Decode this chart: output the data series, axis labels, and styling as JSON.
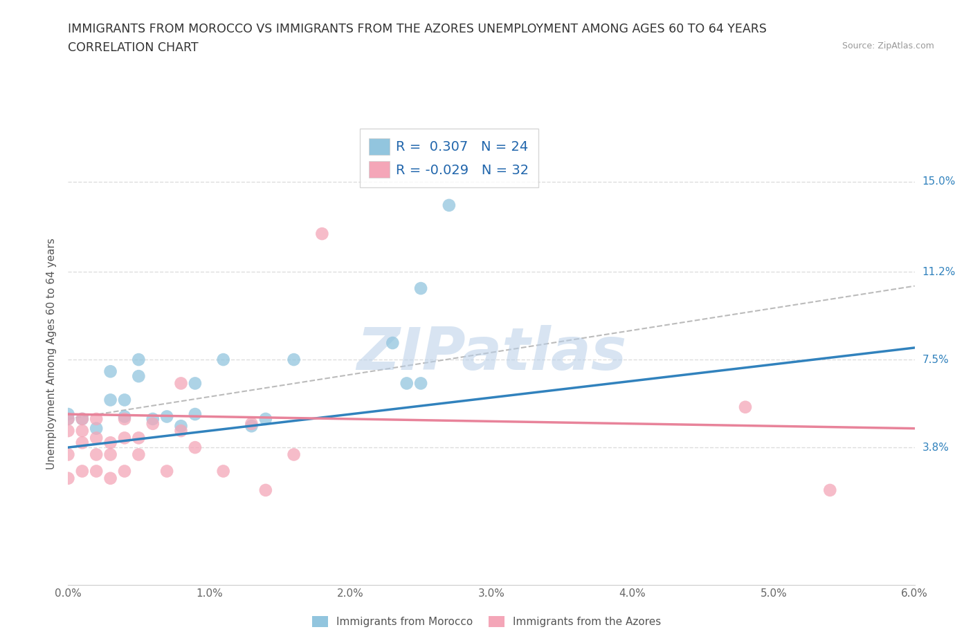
{
  "title_line1": "IMMIGRANTS FROM MOROCCO VS IMMIGRANTS FROM THE AZORES UNEMPLOYMENT AMONG AGES 60 TO 64 YEARS",
  "title_line2": "CORRELATION CHART",
  "source_text": "Source: ZipAtlas.com",
  "ylabel": "Unemployment Among Ages 60 to 64 years",
  "xlim": [
    0.0,
    0.06
  ],
  "ylim": [
    -0.02,
    0.175
  ],
  "xticks": [
    0.0,
    0.01,
    0.02,
    0.03,
    0.04,
    0.05,
    0.06
  ],
  "xticklabels": [
    "0.0%",
    "1.0%",
    "2.0%",
    "3.0%",
    "4.0%",
    "5.0%",
    "6.0%"
  ],
  "ytick_positions": [
    0.038,
    0.075,
    0.112,
    0.15
  ],
  "ytick_labels": [
    "3.8%",
    "7.5%",
    "11.2%",
    "15.0%"
  ],
  "watermark": "ZIPatlas",
  "blue_color": "#92c5de",
  "pink_color": "#f4a6b8",
  "blue_line_color": "#3182bd",
  "pink_line_color": "#e8839a",
  "dashed_line_color": "#bbbbbb",
  "R_blue": 0.307,
  "N_blue": 24,
  "R_pink": -0.029,
  "N_pink": 32,
  "blue_scatter_x": [
    0.0,
    0.0,
    0.001,
    0.002,
    0.003,
    0.003,
    0.004,
    0.004,
    0.005,
    0.005,
    0.006,
    0.007,
    0.008,
    0.009,
    0.009,
    0.011,
    0.013,
    0.014,
    0.016,
    0.023,
    0.024,
    0.025,
    0.025,
    0.027
  ],
  "blue_scatter_y": [
    0.05,
    0.052,
    0.05,
    0.046,
    0.058,
    0.07,
    0.051,
    0.058,
    0.068,
    0.075,
    0.05,
    0.051,
    0.047,
    0.052,
    0.065,
    0.075,
    0.047,
    0.05,
    0.075,
    0.082,
    0.065,
    0.065,
    0.105,
    0.14
  ],
  "pink_scatter_x": [
    0.0,
    0.0,
    0.0,
    0.0,
    0.001,
    0.001,
    0.001,
    0.001,
    0.002,
    0.002,
    0.002,
    0.002,
    0.003,
    0.003,
    0.003,
    0.004,
    0.004,
    0.004,
    0.005,
    0.005,
    0.006,
    0.007,
    0.008,
    0.008,
    0.009,
    0.011,
    0.013,
    0.014,
    0.016,
    0.018,
    0.048,
    0.054
  ],
  "pink_scatter_y": [
    0.05,
    0.045,
    0.035,
    0.025,
    0.05,
    0.045,
    0.04,
    0.028,
    0.05,
    0.042,
    0.035,
    0.028,
    0.04,
    0.035,
    0.025,
    0.05,
    0.042,
    0.028,
    0.042,
    0.035,
    0.048,
    0.028,
    0.045,
    0.065,
    0.038,
    0.028,
    0.048,
    0.02,
    0.035,
    0.128,
    0.055,
    0.02
  ],
  "blue_trend_x0": 0.0,
  "blue_trend_y0": 0.038,
  "blue_trend_x1": 0.06,
  "blue_trend_y1": 0.08,
  "pink_trend_x0": 0.0,
  "pink_trend_y0": 0.052,
  "pink_trend_x1": 0.06,
  "pink_trend_y1": 0.046,
  "dash_trend_x0": 0.0,
  "dash_trend_y0": 0.05,
  "dash_trend_x1": 0.06,
  "dash_trend_y1": 0.106,
  "background_color": "#ffffff",
  "grid_color": "#dddddd",
  "title_fontsize": 12.5,
  "subtitle_fontsize": 12.5,
  "axis_label_fontsize": 11,
  "tick_fontsize": 11,
  "legend_fontsize": 14
}
